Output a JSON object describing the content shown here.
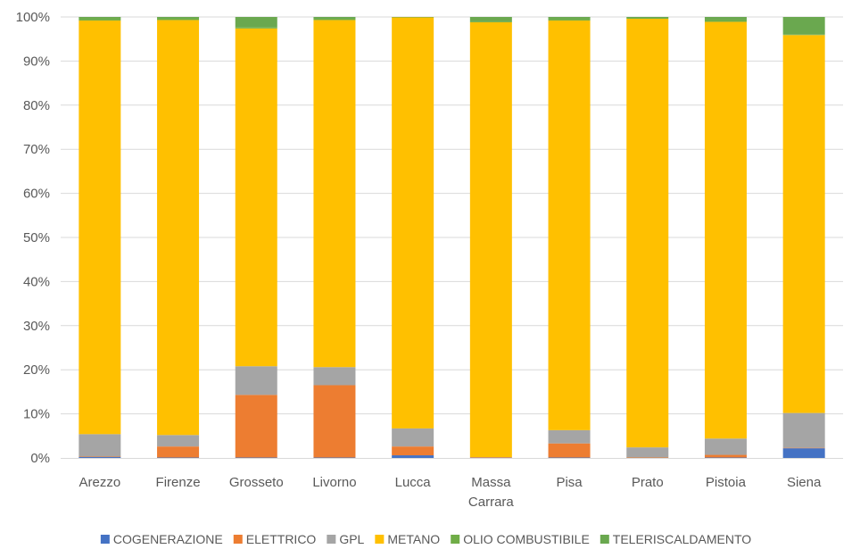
{
  "chart_data": {
    "type": "bar",
    "stacked": true,
    "percent_stacked": true,
    "title": "",
    "xlabel": "",
    "ylabel": "",
    "ylim": [
      0,
      100
    ],
    "y_ticks": [
      "0%",
      "10%",
      "20%",
      "30%",
      "40%",
      "50%",
      "60%",
      "70%",
      "80%",
      "90%",
      "100%"
    ],
    "grid": true,
    "legend_position": "bottom",
    "categories": [
      "Arezzo",
      "Firenze",
      "Grosseto",
      "Livorno",
      "Lucca",
      "Massa Carrara",
      "Pisa",
      "Prato",
      "Pistoia",
      "Siena"
    ],
    "category_label_lines": [
      [
        "Arezzo"
      ],
      [
        "Firenze"
      ],
      [
        "Grosseto"
      ],
      [
        "Livorno"
      ],
      [
        "Lucca"
      ],
      [
        "Massa",
        "Carrara"
      ],
      [
        "Pisa"
      ],
      [
        "Prato"
      ],
      [
        "Pistoia"
      ],
      [
        "Siena"
      ]
    ],
    "series": [
      {
        "name": "COGENERAZIONE",
        "color": "#4472C4",
        "values": [
          0.2,
          0.1,
          0.1,
          0.1,
          0.6,
          0.0,
          0.1,
          0.0,
          0.1,
          2.2
        ]
      },
      {
        "name": "ELETTRICO",
        "color": "#ED7D31",
        "values": [
          0.1,
          2.5,
          14.2,
          16.4,
          2.0,
          0.1,
          3.2,
          0.1,
          0.6,
          0.1
        ]
      },
      {
        "name": "GPL",
        "color": "#A5A5A5",
        "values": [
          5.1,
          2.6,
          6.5,
          4.1,
          4.1,
          0.1,
          3.0,
          2.3,
          3.7,
          7.9
        ]
      },
      {
        "name": "METANO",
        "color": "#FFC000",
        "values": [
          93.8,
          94.1,
          76.6,
          78.7,
          93.2,
          98.6,
          92.9,
          97.2,
          94.5,
          85.7
        ]
      },
      {
        "name": "OLIO COMBUSTIBILE",
        "color": "#70AD47",
        "values": [
          0.5,
          0.4,
          0.3,
          0.3,
          0.0,
          0.2,
          0.4,
          0.2,
          0.5,
          0.1
        ]
      },
      {
        "name": "TELERISCALDAMENTO",
        "color": "#6AA84F",
        "values": [
          0.3,
          0.3,
          2.3,
          0.4,
          0.1,
          1.0,
          0.4,
          0.2,
          0.6,
          4.0
        ]
      }
    ]
  }
}
